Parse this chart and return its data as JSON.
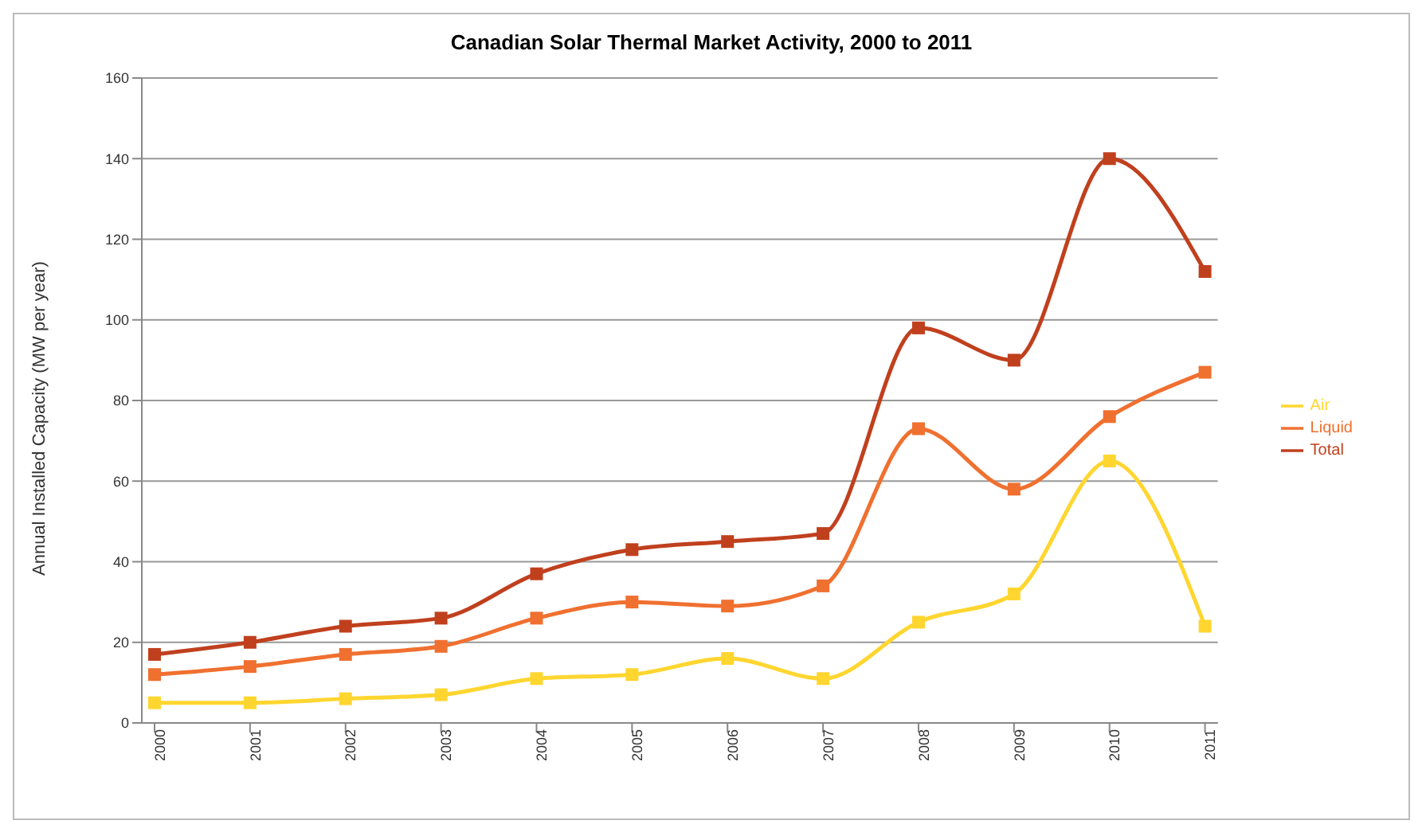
{
  "chart_data": {
    "type": "line",
    "title": "Canadian Solar Thermal Market Activity, 2000 to 2011",
    "ylabel": "Annual Installed Capacity (MW per year)",
    "categories": [
      "2000",
      "2001",
      "2002",
      "2003",
      "2004",
      "2005",
      "2006",
      "2007",
      "2008",
      "2009",
      "2010",
      "2011"
    ],
    "series": [
      {
        "name": "Total",
        "color": "#c0401e",
        "values": [
          17,
          20,
          24,
          26,
          37,
          43,
          45,
          47,
          98,
          90,
          140,
          112
        ]
      },
      {
        "name": "Liquid",
        "color": "#f07030",
        "values": [
          12,
          14,
          17,
          19,
          26,
          30,
          29,
          34,
          73,
          58,
          76,
          87
        ]
      },
      {
        "name": "Air",
        "color": "#ffd630",
        "values": [
          5,
          5,
          6,
          7,
          11,
          12,
          16,
          11,
          25,
          32,
          65,
          24
        ]
      }
    ],
    "ylim": [
      0,
      160
    ],
    "yticks": [
      0,
      20,
      40,
      60,
      80,
      100,
      120,
      140,
      160
    ],
    "grid": "y",
    "legend": "right",
    "marker": "square"
  }
}
